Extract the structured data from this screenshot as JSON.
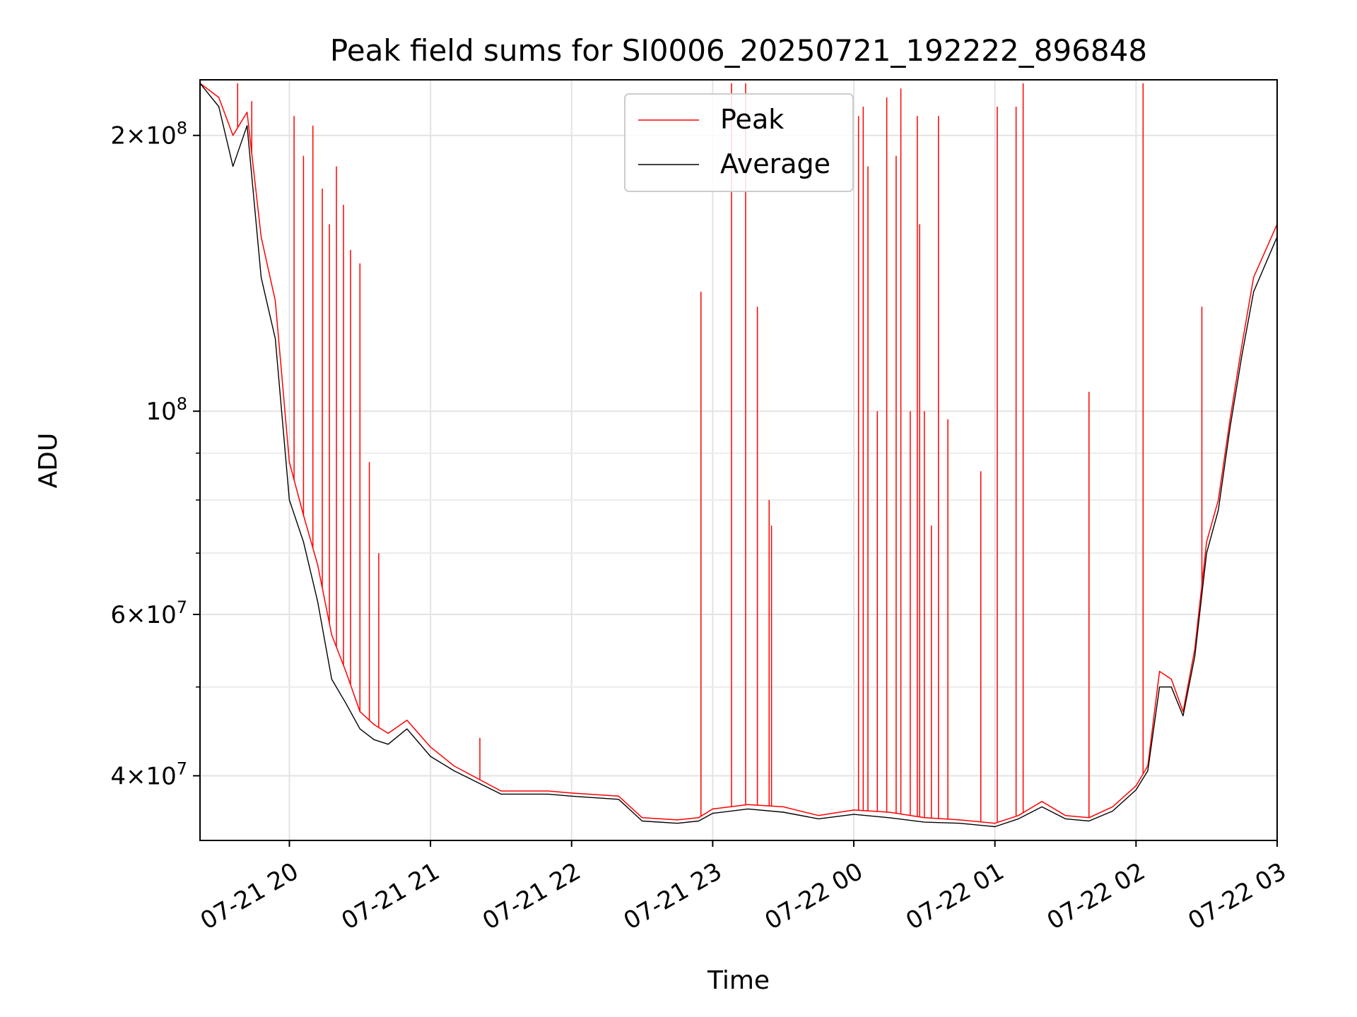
{
  "chart_data": {
    "type": "line",
    "title": "Peak field sums for SI0006_20250721_192222_896848",
    "xlabel": "Time",
    "ylabel": "ADU",
    "yscale": "log",
    "xlim": [
      "2025-07-21 19:22",
      "2025-07-22 03:00"
    ],
    "ylim": [
      34000000,
      230000000
    ],
    "x_ticks": [
      {
        "value": "2025-07-21 20:00",
        "label": "07-21 20"
      },
      {
        "value": "2025-07-21 21:00",
        "label": "07-21 21"
      },
      {
        "value": "2025-07-21 22:00",
        "label": "07-21 22"
      },
      {
        "value": "2025-07-21 23:00",
        "label": "07-21 23"
      },
      {
        "value": "2025-07-22 00:00",
        "label": "07-22 00"
      },
      {
        "value": "2025-07-22 01:00",
        "label": "07-22 01"
      },
      {
        "value": "2025-07-22 02:00",
        "label": "07-22 02"
      },
      {
        "value": "2025-07-22 03:00",
        "label": "07-22 03"
      }
    ],
    "y_major_ticks": [
      {
        "value": 40000000,
        "mantissa": "4",
        "exponent": "7"
      },
      {
        "value": 60000000,
        "mantissa": "6",
        "exponent": "7"
      },
      {
        "value": 100000000,
        "mantissa": "",
        "exponent": "8"
      },
      {
        "value": 200000000,
        "mantissa": "2",
        "exponent": "8"
      }
    ],
    "y_minor_ticks": [
      50000000,
      70000000,
      80000000,
      90000000
    ],
    "grid": true,
    "legend_position": "top-center",
    "series": [
      {
        "name": "Peak",
        "color": "#ff0000",
        "x": [
          "2025-07-21 19:22",
          "2025-07-21 19:30",
          "2025-07-21 19:36",
          "2025-07-21 19:42",
          "2025-07-21 19:48",
          "2025-07-21 19:54",
          "2025-07-21 20:00",
          "2025-07-21 20:06",
          "2025-07-21 20:12",
          "2025-07-21 20:18",
          "2025-07-21 20:24",
          "2025-07-21 20:30",
          "2025-07-21 20:36",
          "2025-07-21 20:42",
          "2025-07-21 20:50",
          "2025-07-21 21:00",
          "2025-07-21 21:10",
          "2025-07-21 21:30",
          "2025-07-21 21:50",
          "2025-07-21 22:00",
          "2025-07-21 22:20",
          "2025-07-21 22:30",
          "2025-07-21 22:45",
          "2025-07-21 22:54",
          "2025-07-21 23:00",
          "2025-07-21 23:15",
          "2025-07-21 23:30",
          "2025-07-21 23:45",
          "2025-07-22 00:00",
          "2025-07-22 00:15",
          "2025-07-22 00:30",
          "2025-07-22 00:45",
          "2025-07-22 01:00",
          "2025-07-22 01:10",
          "2025-07-22 01:20",
          "2025-07-22 01:30",
          "2025-07-22 01:40",
          "2025-07-22 01:50",
          "2025-07-22 02:00",
          "2025-07-22 02:05",
          "2025-07-22 02:10",
          "2025-07-22 02:15",
          "2025-07-22 02:20",
          "2025-07-22 02:25",
          "2025-07-22 02:30",
          "2025-07-22 02:35",
          "2025-07-22 02:40",
          "2025-07-22 02:45",
          "2025-07-22 02:50",
          "2025-07-22 03:00"
        ],
        "y": [
          228000000,
          220000000,
          200000000,
          212000000,
          155000000,
          132000000,
          88000000,
          77000000,
          68000000,
          57000000,
          52000000,
          47000000,
          45500000,
          44500000,
          46000000,
          43000000,
          41000000,
          38500000,
          38500000,
          38300000,
          38000000,
          36000000,
          35800000,
          36000000,
          36800000,
          37200000,
          37000000,
          36200000,
          36700000,
          36500000,
          36000000,
          35800000,
          35500000,
          36200000,
          37500000,
          36200000,
          36000000,
          37000000,
          39000000,
          41000000,
          52000000,
          51000000,
          47000000,
          55000000,
          72000000,
          80000000,
          98000000,
          118000000,
          140000000,
          160000000
        ]
      },
      {
        "name": "Average",
        "color": "#000000",
        "x": [
          "2025-07-21 19:22",
          "2025-07-21 19:30",
          "2025-07-21 19:36",
          "2025-07-21 19:42",
          "2025-07-21 19:48",
          "2025-07-21 19:54",
          "2025-07-21 20:00",
          "2025-07-21 20:06",
          "2025-07-21 20:12",
          "2025-07-21 20:18",
          "2025-07-21 20:24",
          "2025-07-21 20:30",
          "2025-07-21 20:36",
          "2025-07-21 20:42",
          "2025-07-21 20:50",
          "2025-07-21 21:00",
          "2025-07-21 21:10",
          "2025-07-21 21:30",
          "2025-07-21 21:50",
          "2025-07-21 22:00",
          "2025-07-21 22:20",
          "2025-07-21 22:30",
          "2025-07-21 22:45",
          "2025-07-21 22:54",
          "2025-07-21 23:00",
          "2025-07-21 23:15",
          "2025-07-21 23:30",
          "2025-07-21 23:45",
          "2025-07-22 00:00",
          "2025-07-22 00:15",
          "2025-07-22 00:30",
          "2025-07-22 00:45",
          "2025-07-22 01:00",
          "2025-07-22 01:10",
          "2025-07-22 01:20",
          "2025-07-22 01:30",
          "2025-07-22 01:40",
          "2025-07-22 01:50",
          "2025-07-22 02:00",
          "2025-07-22 02:05",
          "2025-07-22 02:10",
          "2025-07-22 02:15",
          "2025-07-22 02:20",
          "2025-07-22 02:25",
          "2025-07-22 02:30",
          "2025-07-22 02:35",
          "2025-07-22 02:40",
          "2025-07-22 02:45",
          "2025-07-22 02:50",
          "2025-07-22 03:00"
        ],
        "y": [
          228000000,
          215000000,
          185000000,
          205000000,
          140000000,
          120000000,
          80000000,
          72000000,
          62000000,
          51000000,
          48000000,
          45000000,
          43800000,
          43300000,
          45000000,
          42000000,
          40500000,
          38200000,
          38200000,
          38000000,
          37700000,
          35700000,
          35500000,
          35700000,
          36400000,
          36800000,
          36500000,
          35900000,
          36300000,
          36000000,
          35600000,
          35500000,
          35200000,
          35900000,
          37000000,
          35900000,
          35700000,
          36600000,
          38600000,
          40500000,
          50000000,
          50000000,
          46500000,
          54000000,
          70000000,
          78000000,
          96000000,
          115000000,
          135000000,
          155000000
        ]
      }
    ],
    "spikes": {
      "name": "Peak",
      "x": [
        "2025-07-21 19:38",
        "2025-07-21 19:44",
        "2025-07-21 20:02",
        "2025-07-21 20:06",
        "2025-07-21 20:10",
        "2025-07-21 20:14",
        "2025-07-21 20:17",
        "2025-07-21 20:20",
        "2025-07-21 20:23",
        "2025-07-21 20:26",
        "2025-07-21 20:30",
        "2025-07-21 20:34",
        "2025-07-21 20:38",
        "2025-07-21 21:21",
        "2025-07-21 22:55",
        "2025-07-21 23:08",
        "2025-07-21 23:14",
        "2025-07-21 23:19",
        "2025-07-21 23:24",
        "2025-07-21 23:25",
        "2025-07-22 00:02",
        "2025-07-22 00:04",
        "2025-07-22 00:06",
        "2025-07-22 00:10",
        "2025-07-22 00:14",
        "2025-07-22 00:18",
        "2025-07-22 00:20",
        "2025-07-22 00:24",
        "2025-07-22 00:27",
        "2025-07-22 00:28",
        "2025-07-22 00:30",
        "2025-07-22 00:33",
        "2025-07-22 00:36",
        "2025-07-22 00:40",
        "2025-07-22 00:54",
        "2025-07-22 01:01",
        "2025-07-22 01:09",
        "2025-07-22 01:12",
        "2025-07-22 01:40",
        "2025-07-22 02:03",
        "2025-07-22 02:28"
      ],
      "y": [
        228000000,
        218000000,
        210000000,
        190000000,
        205000000,
        175000000,
        160000000,
        185000000,
        168000000,
        150000000,
        145000000,
        88000000,
        70000000,
        44000000,
        135000000,
        228000000,
        228000000,
        130000000,
        80000000,
        75000000,
        210000000,
        215000000,
        185000000,
        100000000,
        220000000,
        190000000,
        225000000,
        100000000,
        210000000,
        160000000,
        100000000,
        75000000,
        210000000,
        98000000,
        86000000,
        215000000,
        215000000,
        228000000,
        105000000,
        228000000,
        130000000
      ]
    }
  }
}
